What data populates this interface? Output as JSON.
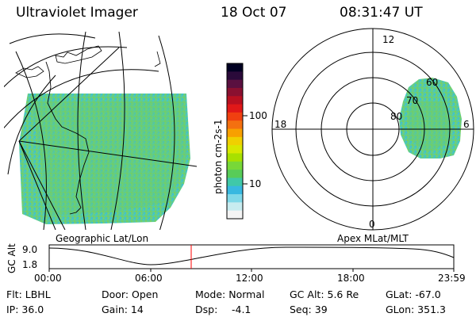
{
  "header": {
    "instrument": "Ultraviolet Imager",
    "date": "18 Oct 07",
    "time": "08:31:47 UT"
  },
  "colorbar": {
    "label": "photon cm-2s-1",
    "ticks": [
      "100",
      "10"
    ],
    "colors": [
      "#000022",
      "#2a0a3a",
      "#5a1040",
      "#8a1030",
      "#b81020",
      "#e01818",
      "#f04010",
      "#f47010",
      "#f8a000",
      "#f0d000",
      "#d8e800",
      "#a8e000",
      "#78d838",
      "#58cc58",
      "#40c8a8",
      "#38b8e0",
      "#80d8e8",
      "#c8ecf0",
      "#f4f4f4"
    ]
  },
  "geo_panel": {
    "label": "Geographic Lat/Lon"
  },
  "polar_panel": {
    "label": "Apex MLat/MLT",
    "mlt_labels": {
      "top": "12",
      "left": "18",
      "right": "6",
      "bottom": "0"
    },
    "lat_labels": [
      "60",
      "70",
      "80"
    ]
  },
  "altitude_plot": {
    "ylabel": "GC Alt",
    "yticks": [
      "9.0",
      "1.8"
    ],
    "xticks": [
      "00:00",
      "06:00",
      "12:00",
      "18:00",
      "23:59"
    ],
    "current_time_marker_color": "#ff0000"
  },
  "info": {
    "flt": "Flt: LBHL",
    "ip": "IP: 36.0",
    "door": "Door: Open",
    "gain": "Gain: 14",
    "mode": "Mode: Normal",
    "dsp": "Dsp:",
    "dsp_value": "-4.1",
    "gcalt": "GC Alt: 5.6 Re",
    "seq": "Seq: 39",
    "glat": "GLat: -67.0",
    "glon": "GLon: 351.3"
  }
}
